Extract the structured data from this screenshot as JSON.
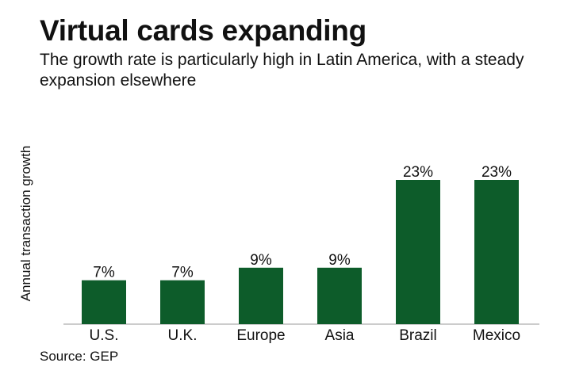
{
  "header": {
    "title": "Virtual cards expanding",
    "subtitle": "The growth rate is particularly high in Latin America, with a steady expansion elsewhere"
  },
  "footer": {
    "source": "Source: GEP"
  },
  "chart_data": {
    "type": "bar",
    "title": "Virtual cards expanding",
    "subtitle": "The growth rate is particularly high in Latin America, with a steady expansion elsewhere",
    "categories": [
      "U.S.",
      "U.K.",
      "Europe",
      "Asia",
      "Brazil",
      "Mexico"
    ],
    "values": [
      7,
      7,
      9,
      9,
      23,
      23
    ],
    "data_labels": [
      "7%",
      "7%",
      "9%",
      "9%",
      "23%",
      "23%"
    ],
    "xlabel": "",
    "ylabel": "Annual transaction growth",
    "ylim": [
      0,
      23
    ],
    "grid": false,
    "bar_color": "#0d5c2a"
  }
}
